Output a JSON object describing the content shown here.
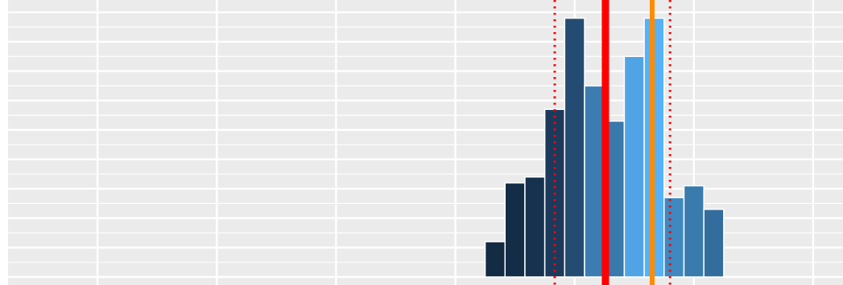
{
  "chart_data": {
    "type": "bar",
    "title": "",
    "xlabel": "",
    "ylabel": "",
    "grid": true,
    "panel_background": "#EBEBEB",
    "grid_color": "#FFFFFF",
    "xlim": [
      0,
      42
    ],
    "ylim": [
      0,
      9.2
    ],
    "bin_width": 1,
    "bars": [
      {
        "x": 24.5,
        "value": 1.2,
        "color": "#132B43"
      },
      {
        "x": 25.5,
        "value": 3.2,
        "color": "#142D47"
      },
      {
        "x": 26.5,
        "value": 3.4,
        "color": "#16324F"
      },
      {
        "x": 27.5,
        "value": 5.7,
        "color": "#1B3A5C"
      },
      {
        "x": 28.5,
        "value": 8.8,
        "color": "#244C72"
      },
      {
        "x": 29.5,
        "value": 6.5,
        "color": "#3B7DB0"
      },
      {
        "x": 30.5,
        "value": 5.3,
        "color": "#3979AB"
      },
      {
        "x": 31.5,
        "value": 7.5,
        "color": "#50A4E5"
      },
      {
        "x": 32.5,
        "value": 8.8,
        "color": "#56B1F7"
      },
      {
        "x": 33.5,
        "value": 2.7,
        "color": "#3F88C0"
      },
      {
        "x": 34.5,
        "value": 3.1,
        "color": "#3A7BAD"
      },
      {
        "x": 35.5,
        "value": 2.3,
        "color": "#336D9D"
      }
    ],
    "reference_lines": [
      {
        "x": 30.05,
        "color": "#FF0000",
        "style": "solid",
        "weight": "thick"
      },
      {
        "x": 32.4,
        "color": "#FF8C00",
        "style": "solid",
        "weight": "medium"
      },
      {
        "x": 27.5,
        "color": "#FF0000",
        "style": "dotted",
        "weight": "thin"
      },
      {
        "x": 33.3,
        "color": "#FF0000",
        "style": "dotted",
        "weight": "thin"
      }
    ],
    "x_major_breaks": [
      4.5,
      10.5,
      16.5,
      22.5,
      28.5,
      34.5,
      40.5
    ],
    "y_major_breaks": [
      0,
      1,
      2,
      3,
      4,
      5,
      6,
      7,
      8,
      9
    ]
  }
}
